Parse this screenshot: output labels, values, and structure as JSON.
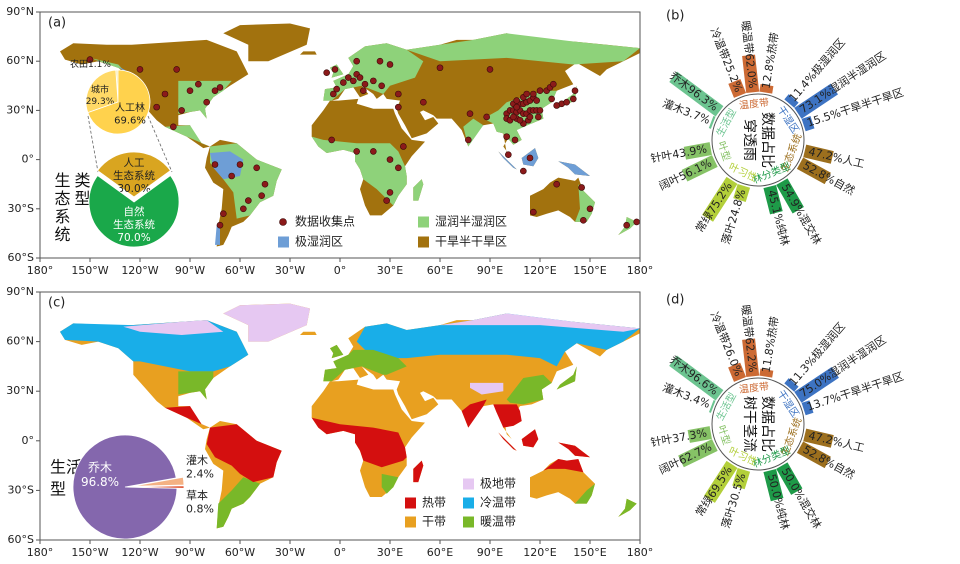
{
  "chart_data": [
    {
      "type": "map",
      "panel": "(a)",
      "xlim": [
        -180,
        180
      ],
      "ylim": [
        -60,
        90
      ],
      "xticks": [
        {
          "value": -180,
          "label": "180°"
        },
        {
          "value": -150,
          "label": "150°W"
        },
        {
          "value": -120,
          "label": "120°W"
        },
        {
          "value": -90,
          "label": "90°W"
        },
        {
          "value": -60,
          "label": "60°W"
        },
        {
          "value": -30,
          "label": "30°W"
        },
        {
          "value": 0,
          "label": "0°"
        },
        {
          "value": 30,
          "label": "30°E"
        },
        {
          "value": 60,
          "label": "60°E"
        },
        {
          "value": 90,
          "label": "90°E"
        },
        {
          "value": 120,
          "label": "120°E"
        },
        {
          "value": 150,
          "label": "150°E"
        },
        {
          "value": 180,
          "label": "180°"
        }
      ],
      "yticks": [
        {
          "value": 90,
          "label": "90°N"
        },
        {
          "value": 60,
          "label": "60°N"
        },
        {
          "value": 30,
          "label": "30°N"
        },
        {
          "value": 0,
          "label": "0°"
        },
        {
          "value": -30,
          "label": "30°S"
        },
        {
          "value": -60,
          "label": "60°S"
        }
      ],
      "legend": [
        {
          "name": "数据收集点",
          "color": "#8b1a1a"
        },
        {
          "name": "极湿润区",
          "color": "#6e9ed6"
        },
        {
          "name": "湿润半湿润区",
          "color": "#8ed27a"
        },
        {
          "name": "干旱半干旱区",
          "color": "#a2720e"
        }
      ],
      "side_label": [
        "类型",
        "生态系统"
      ],
      "pies": [
        {
          "type": "pie",
          "categories": [
            "农田",
            "城市",
            "人工林"
          ],
          "values": [
            1.1,
            29.3,
            69.6
          ],
          "value_labels": [
            "1.1%",
            "29.3%",
            "69.6%"
          ],
          "colors": [
            "#f6e7a6",
            "#ffd966",
            "#ffd24d"
          ]
        },
        {
          "type": "pie",
          "categories": [
            [
              "人工",
              "生态系统"
            ],
            [
              "自然",
              "生态系统"
            ]
          ],
          "values": [
            30.0,
            70.0
          ],
          "value_labels": [
            "30.0%",
            "70.0%"
          ],
          "colors": [
            "#d9a520",
            "#1aa84a"
          ]
        }
      ]
    },
    {
      "type": "radial_bar",
      "panel": "(b)",
      "center_text": [
        "数据占比",
        "穿透雨"
      ],
      "groups": [
        {
          "name": "温度带",
          "color": "#cc6a34",
          "categories": [
            "冷温带",
            "暖温带",
            "热带"
          ],
          "values": [
            25.2,
            62.0,
            12.8
          ],
          "value_labels": [
            "25.2%",
            "62.0%",
            "12.8%"
          ]
        },
        {
          "name": "干湿区",
          "color": "#3d73c2",
          "categories": [
            "极湿润区",
            "湿润半湿润区",
            "干旱半干旱区"
          ],
          "values": [
            11.4,
            73.1,
            15.5
          ],
          "value_labels": [
            "11.4%",
            "73.1%",
            "15.5%"
          ]
        },
        {
          "name": "生态系统",
          "color": "#9c6f1e",
          "categories": [
            "人工",
            "自然"
          ],
          "values": [
            47.2,
            52.8
          ],
          "value_labels": [
            "47.2%",
            "52.8%"
          ]
        },
        {
          "name": "林分类型",
          "color": "#1e9a48",
          "categories": [
            "混交林",
            "纯林"
          ],
          "values": [
            54.9,
            45.1
          ],
          "value_labels": [
            "54.9%",
            "45.1%"
          ]
        },
        {
          "name": "叶习性",
          "color": "#b3cf3a",
          "categories": [
            "落叶",
            "常绿"
          ],
          "values": [
            24.8,
            75.2
          ],
          "value_labels": [
            "24.8%",
            "75.2%"
          ]
        },
        {
          "name": "叶型",
          "color": "#86c266",
          "categories": [
            "阔叶",
            "针叶"
          ],
          "values": [
            56.1,
            43.9
          ],
          "value_labels": [
            "56.1%",
            "43.9%"
          ]
        },
        {
          "name": "生活型",
          "color": "#6cc490",
          "categories": [
            "灌木",
            "乔木"
          ],
          "values": [
            3.7,
            96.3
          ],
          "value_labels": [
            "3.7%",
            "96.3%"
          ]
        }
      ]
    },
    {
      "type": "map",
      "panel": "(c)",
      "xlim": [
        -180,
        180
      ],
      "ylim": [
        -60,
        90
      ],
      "xticks": [
        {
          "value": -180,
          "label": "180°"
        },
        {
          "value": -150,
          "label": "150°W"
        },
        {
          "value": -120,
          "label": "120°W"
        },
        {
          "value": -90,
          "label": "90°W"
        },
        {
          "value": -60,
          "label": "60°W"
        },
        {
          "value": -30,
          "label": "30°W"
        },
        {
          "value": 0,
          "label": "0°"
        },
        {
          "value": 30,
          "label": "30°E"
        },
        {
          "value": 60,
          "label": "60°E"
        },
        {
          "value": 90,
          "label": "90°E"
        },
        {
          "value": 120,
          "label": "120°E"
        },
        {
          "value": 150,
          "label": "150°E"
        },
        {
          "value": 180,
          "label": "180°"
        }
      ],
      "yticks": [
        {
          "value": 90,
          "label": "90°N"
        },
        {
          "value": 60,
          "label": "60°N"
        },
        {
          "value": 30,
          "label": "30°N"
        },
        {
          "value": 0,
          "label": "0°"
        },
        {
          "value": -30,
          "label": "30°S"
        },
        {
          "value": -60,
          "label": "60°S"
        }
      ],
      "legend": [
        {
          "name": "热带",
          "color": "#d40f0f"
        },
        {
          "name": "干带",
          "color": "#e8a020"
        },
        {
          "name": "极地带",
          "color": "#e6c8f2"
        },
        {
          "name": "冷温带",
          "color": "#19aee8"
        },
        {
          "name": "暖温带",
          "color": "#79b829"
        }
      ],
      "side_label": [
        "生活",
        "型"
      ],
      "pies": [
        {
          "type": "pie",
          "categories": [
            "乔木",
            "灌木",
            "草本"
          ],
          "values": [
            96.8,
            2.4,
            0.8
          ],
          "value_labels": [
            "96.8%",
            "2.4%",
            "0.8%"
          ],
          "colors": [
            "#8467ad",
            "#f4b183",
            "#e05a3a"
          ]
        }
      ]
    },
    {
      "type": "radial_bar",
      "panel": "(d)",
      "center_text": [
        "数据占比",
        "树干茎流"
      ],
      "groups": [
        {
          "name": "温度带",
          "color": "#cc6a34",
          "categories": [
            "冷温带",
            "暖温带",
            "热带"
          ],
          "values": [
            26.0,
            62.2,
            11.8
          ],
          "value_labels": [
            "26.0%",
            "62.2%",
            "11.8%"
          ]
        },
        {
          "name": "干湿区",
          "color": "#3d73c2",
          "categories": [
            "极湿润区",
            "湿润半湿润区",
            "干旱半干旱区"
          ],
          "values": [
            11.3,
            75.0,
            13.7
          ],
          "value_labels": [
            "11.3%",
            "75.0%",
            "13.7%"
          ]
        },
        {
          "name": "生态系统",
          "color": "#9c6f1e",
          "categories": [
            "人工",
            "自然"
          ],
          "values": [
            47.2,
            52.8
          ],
          "value_labels": [
            "47.2%",
            "52.8%"
          ]
        },
        {
          "name": "林分类型",
          "color": "#1e9a48",
          "categories": [
            "混交林",
            "纯林"
          ],
          "values": [
            50.0,
            50.0
          ],
          "value_labels": [
            "50.0%",
            "50.0%"
          ]
        },
        {
          "name": "叶习性",
          "color": "#b3cf3a",
          "categories": [
            "落叶",
            "常绿"
          ],
          "values": [
            30.5,
            69.5
          ],
          "value_labels": [
            "30.5%",
            "69.5%"
          ]
        },
        {
          "name": "叶型",
          "color": "#86c266",
          "categories": [
            "阔叶",
            "针叶"
          ],
          "values": [
            62.7,
            37.3
          ],
          "value_labels": [
            "62.7%",
            "37.3%"
          ]
        },
        {
          "name": "生活型",
          "color": "#6cc490",
          "categories": [
            "灌木",
            "乔木"
          ],
          "values": [
            3.4,
            96.6
          ],
          "value_labels": [
            "3.4%",
            "96.6%"
          ]
        }
      ]
    }
  ]
}
